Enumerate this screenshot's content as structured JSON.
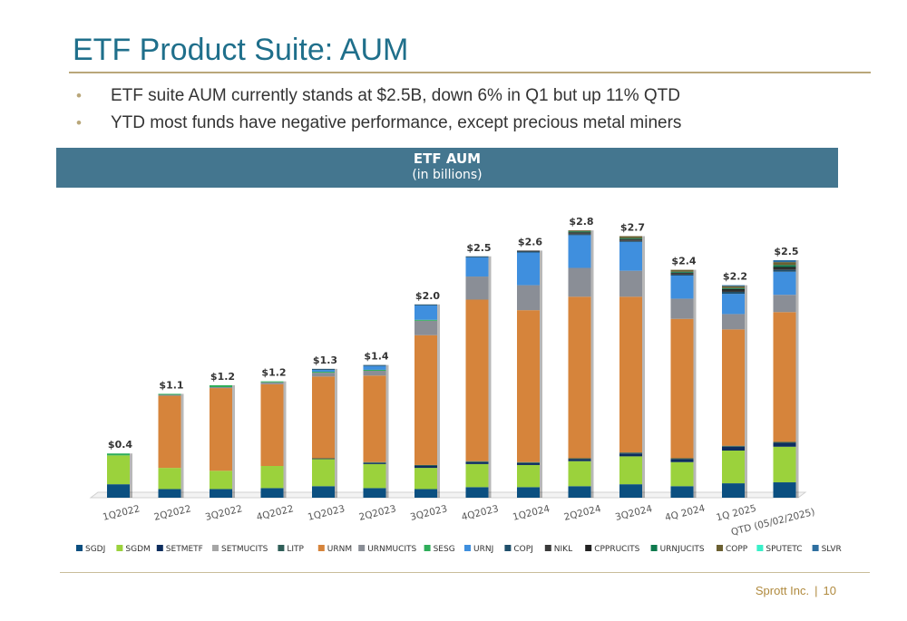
{
  "slide": {
    "title": "ETF Product Suite: AUM",
    "bullets": [
      {
        "marker": "•",
        "text": "ETF suite AUM currently stands at $2.5B, down 6% in Q1 but up 11% QTD"
      },
      {
        "marker": "•",
        "text": "YTD most funds have negative performance, except precious metal miners"
      }
    ],
    "footer": {
      "company": "Sprott Inc.",
      "separator": "|",
      "page": "10"
    }
  },
  "chart_header": {
    "title": "ETF AUM",
    "subtitle": "(in billions)"
  },
  "chart_data": {
    "type": "bar",
    "stacked": true,
    "title": "ETF AUM",
    "subtitle": "(in billions)",
    "ylim": [
      0,
      3.1
    ],
    "grid": false,
    "legend_position": "bottom",
    "categories": [
      "1Q2022",
      "2Q2022",
      "3Q2022",
      "4Q2022",
      "1Q2023",
      "2Q2023",
      "3Q2023",
      "4Q2023",
      "1Q2024",
      "2Q2024",
      "3Q2024",
      "4Q 2024",
      "1Q 2025",
      "QTD (05/02/2025)"
    ],
    "totals_labels": [
      "$0.4",
      "$1.1",
      "$1.2",
      "$1.2",
      "$1.3",
      "$1.4",
      "$2.0",
      "$2.5",
      "$2.6",
      "$2.8",
      "$2.7",
      "$2.4",
      "$2.2",
      "$2.5"
    ],
    "series": [
      {
        "name": "SGDJ",
        "color": "#0b4f80",
        "values": [
          0.14,
          0.09,
          0.09,
          0.1,
          0.12,
          0.1,
          0.09,
          0.11,
          0.11,
          0.12,
          0.14,
          0.12,
          0.15,
          0.16
        ]
      },
      {
        "name": "SGDM",
        "color": "#9bd23c",
        "values": [
          0.3,
          0.22,
          0.19,
          0.23,
          0.28,
          0.25,
          0.22,
          0.24,
          0.23,
          0.26,
          0.29,
          0.25,
          0.34,
          0.37
        ]
      },
      {
        "name": "SETMETF",
        "color": "#0d2d5e",
        "values": [
          0,
          0,
          0,
          0,
          0,
          0.01,
          0.02,
          0.02,
          0.02,
          0.02,
          0.03,
          0.03,
          0.04,
          0.04
        ]
      },
      {
        "name": "SETMUCITS",
        "color": "#a6a6a6",
        "values": [
          0,
          0,
          0,
          0,
          0,
          0,
          0,
          0,
          0,
          0,
          0,
          0,
          0,
          0
        ]
      },
      {
        "name": "LITP",
        "color": "#2f5e58",
        "values": [
          0,
          0,
          0,
          0,
          0.01,
          0.01,
          0.01,
          0.01,
          0.01,
          0.01,
          0.01,
          0.01,
          0.01,
          0.01
        ]
      },
      {
        "name": "URNM",
        "color": "#d6843b",
        "values": [
          0,
          0.75,
          0.86,
          0.85,
          0.85,
          0.9,
          1.35,
          1.68,
          1.58,
          1.68,
          1.62,
          1.45,
          1.21,
          1.35
        ]
      },
      {
        "name": "URNMUCITS",
        "color": "#8a8e96",
        "values": [
          0,
          0.01,
          0.01,
          0.02,
          0.04,
          0.05,
          0.15,
          0.24,
          0.26,
          0.3,
          0.27,
          0.21,
          0.16,
          0.18
        ]
      },
      {
        "name": "SESG",
        "color": "#2fae5a",
        "values": [
          0.02,
          0.01,
          0.02,
          0.01,
          0.01,
          0.01,
          0.01,
          0,
          0,
          0,
          0,
          0,
          0,
          0
        ]
      },
      {
        "name": "URNJ",
        "color": "#3f8fde",
        "values": [
          0,
          0,
          0,
          0,
          0.02,
          0.04,
          0.15,
          0.2,
          0.34,
          0.34,
          0.3,
          0.24,
          0.21,
          0.24
        ]
      },
      {
        "name": "COPJ",
        "color": "#1f4f6b",
        "values": [
          0,
          0,
          0,
          0,
          0.01,
          0.01,
          0.01,
          0.01,
          0.01,
          0.01,
          0.01,
          0.01,
          0.02,
          0.02
        ]
      },
      {
        "name": "NIKL",
        "color": "#3a3a3a",
        "values": [
          0,
          0,
          0,
          0,
          0,
          0,
          0,
          0,
          0.01,
          0.01,
          0.01,
          0.01,
          0.01,
          0.01
        ]
      },
      {
        "name": "CPPRUCITS",
        "color": "#222222",
        "values": [
          0,
          0,
          0,
          0,
          0,
          0,
          0,
          0,
          0,
          0.01,
          0.01,
          0.01,
          0.02,
          0.02
        ]
      },
      {
        "name": "URNJUCITS",
        "color": "#0e7a4e",
        "values": [
          0,
          0,
          0,
          0,
          0,
          0,
          0,
          0,
          0,
          0.01,
          0.01,
          0.01,
          0.01,
          0.02
        ]
      },
      {
        "name": "COPP",
        "color": "#6b6031",
        "values": [
          0,
          0,
          0,
          0,
          0,
          0,
          0,
          0,
          0,
          0.01,
          0.02,
          0.02,
          0.02,
          0.03
        ]
      },
      {
        "name": "SPUTETC",
        "color": "#39f0c9",
        "values": [
          0,
          0,
          0,
          0,
          0,
          0,
          0,
          0,
          0,
          0,
          0,
          0,
          0,
          0
        ]
      },
      {
        "name": "SLVR",
        "color": "#2e6fa0",
        "values": [
          0,
          0,
          0,
          0,
          0,
          0,
          0,
          0,
          0,
          0,
          0,
          0,
          0.01,
          0.02
        ]
      }
    ]
  }
}
